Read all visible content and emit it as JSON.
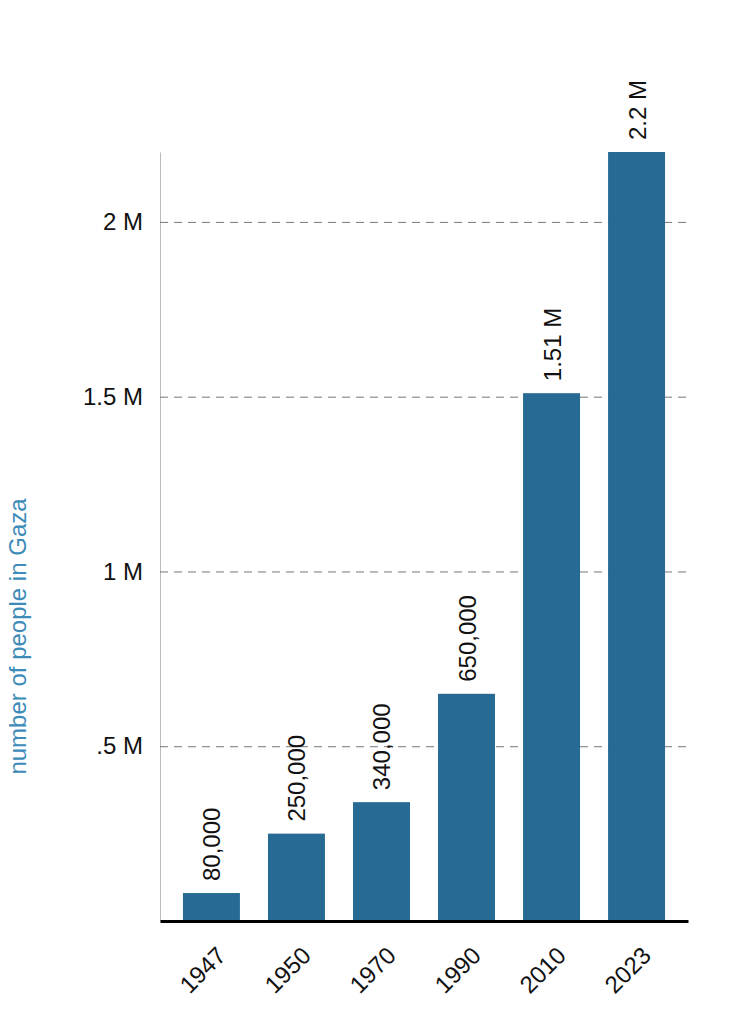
{
  "chart_data": {
    "type": "bar",
    "y_label": "number of people in Gaza",
    "categories": [
      "1947",
      "1950",
      "1970",
      "1990",
      "2010",
      "2023"
    ],
    "values": [
      80000,
      250000,
      340000,
      650000,
      1510000,
      2200000
    ],
    "value_labels": [
      "80,000",
      "250,000",
      "340,000",
      "650,000",
      "1.51 M",
      "2.2 M"
    ],
    "color": "#276a93",
    "ylim": [
      0,
      2200000
    ],
    "yticks": [
      {
        "value": 500000,
        "label": ".5 M"
      },
      {
        "value": 1000000,
        "label": "1 M"
      },
      {
        "value": 1500000,
        "label": "1.5 M"
      },
      {
        "value": 2000000,
        "label": "2 M"
      }
    ],
    "grid": true,
    "data_labels": true
  }
}
